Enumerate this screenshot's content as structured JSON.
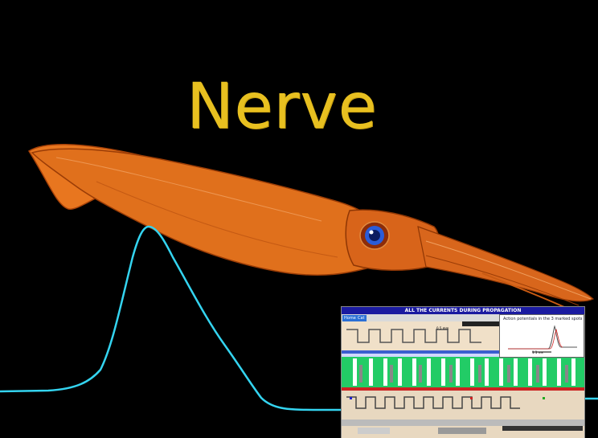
{
  "title": "Nerve",
  "colors": {
    "background": "#000000",
    "title": "#e8c020",
    "squid_body": "#e0701c",
    "squid_dark": "#a84208",
    "trace": "#34d4f0",
    "eye": "#2a5cd8"
  },
  "thumbnail": {
    "header": "ALL THE CURRENTS DURING PROPAGATION",
    "nav_home": "Home",
    "nav_cat": "Cat",
    "ap_title": "Action potentials in the 3 marked spots",
    "ap_scale": "1.1 ms",
    "scale_label": "0.5 mm"
  }
}
